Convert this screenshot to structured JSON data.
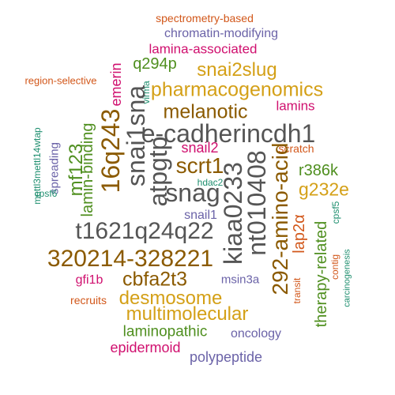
{
  "colors": {
    "gray": "#555555",
    "brown": "#8B5A00",
    "gold": "#D4A017",
    "green": "#4F8F1F",
    "magenta": "#D0106F",
    "purple": "#6B63A8",
    "orange": "#D2571A",
    "teal": "#1F8F6F"
  },
  "words": [
    {
      "text": "spectrometry-based",
      "color": "orange"
    },
    {
      "text": "chromatin-modifying",
      "color": "purple"
    },
    {
      "text": "lamina-associated",
      "color": "magenta"
    },
    {
      "text": "q294p",
      "color": "green"
    },
    {
      "text": "snai2slug",
      "color": "gold"
    },
    {
      "text": "region-selective",
      "color": "orange"
    },
    {
      "text": "virma",
      "color": "teal"
    },
    {
      "text": "emerin",
      "color": "magenta"
    },
    {
      "text": "pharmacogenomics",
      "color": "gold"
    },
    {
      "text": "lamins",
      "color": "magenta"
    },
    {
      "text": "melanotic",
      "color": "brown"
    },
    {
      "text": "e-cadherincdh1",
      "color": "gray"
    },
    {
      "text": "snai1sna",
      "color": "gray"
    },
    {
      "text": "16q243",
      "color": "brown"
    },
    {
      "text": "mettl3mettl14wtap",
      "color": "teal"
    },
    {
      "text": "mf123",
      "color": "green"
    },
    {
      "text": "lamin-binding",
      "color": "green"
    },
    {
      "text": "spreading",
      "color": "purple"
    },
    {
      "text": "scrt1",
      "color": "brown"
    },
    {
      "text": "snail2",
      "color": "magenta"
    },
    {
      "text": "atpgtp",
      "color": "gray"
    },
    {
      "text": "scratch",
      "color": "orange"
    },
    {
      "text": "kiaa0233",
      "color": "gray"
    },
    {
      "text": "nt010408",
      "color": "gray"
    },
    {
      "text": "292-amino-acid",
      "color": "brown"
    },
    {
      "text": "r386k",
      "color": "green"
    },
    {
      "text": "g232e",
      "color": "gold"
    },
    {
      "text": "hdac2",
      "color": "teal"
    },
    {
      "text": "snag",
      "color": "gray"
    },
    {
      "text": "cpsf6",
      "color": "teal"
    },
    {
      "text": "snail1",
      "color": "purple"
    },
    {
      "text": "lap2α",
      "color": "orange"
    },
    {
      "text": "cpsf5",
      "color": "teal"
    },
    {
      "text": "t1621q24q22",
      "color": "gray"
    },
    {
      "text": "therapy-related",
      "color": "green"
    },
    {
      "text": "320214-328221",
      "color": "brown"
    },
    {
      "text": "contig",
      "color": "orange"
    },
    {
      "text": "carcinogenesis",
      "color": "teal"
    },
    {
      "text": "gfi1b",
      "color": "magenta"
    },
    {
      "text": "cbfa2t3",
      "color": "brown"
    },
    {
      "text": "msin3a",
      "color": "purple"
    },
    {
      "text": "transit",
      "color": "orange"
    },
    {
      "text": "recruits",
      "color": "orange"
    },
    {
      "text": "desmosome",
      "color": "gold"
    },
    {
      "text": "multimolecular",
      "color": "gold"
    },
    {
      "text": "laminopathic",
      "color": "green"
    },
    {
      "text": "oncology",
      "color": "purple"
    },
    {
      "text": "epidermoid",
      "color": "magenta"
    },
    {
      "text": "polypeptide",
      "color": "purple"
    }
  ]
}
